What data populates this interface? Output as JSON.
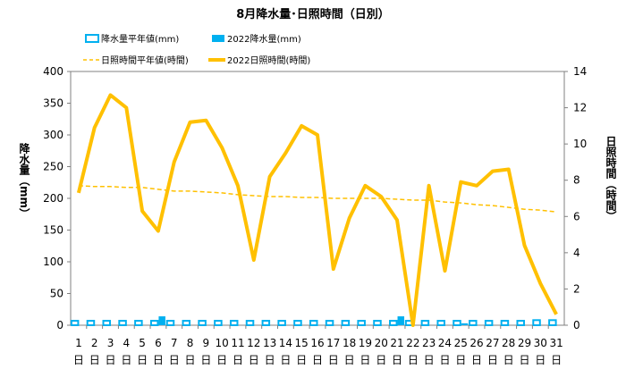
{
  "chart_data": {
    "type": "bar+line",
    "title": "8月降水量･日照時間（日別）",
    "categories": [
      "1",
      "2",
      "3",
      "4",
      "5",
      "6",
      "7",
      "8",
      "9",
      "10",
      "11",
      "12",
      "13",
      "14",
      "15",
      "16",
      "17",
      "18",
      "19",
      "20",
      "21",
      "22",
      "23",
      "24",
      "25",
      "26",
      "27",
      "28",
      "29",
      "30",
      "31"
    ],
    "category_suffix": "日",
    "y_left": {
      "label": "降水量（mm）",
      "min": 0,
      "max": 400,
      "ticks": [
        0,
        50,
        100,
        150,
        200,
        250,
        300,
        350,
        400
      ]
    },
    "y_right": {
      "label": "日照時間（時間）",
      "min": 0,
      "max": 14,
      "ticks": [
        0,
        2,
        4,
        6,
        8,
        10,
        12,
        14
      ]
    },
    "legend": [
      {
        "key": "rain_normal",
        "label": "降水量平年値(mm)"
      },
      {
        "key": "rain_2022",
        "label": "2022降水量(mm)"
      },
      {
        "key": "sun_normal",
        "label": "日照時間平年値(時間)"
      },
      {
        "key": "sun_2022",
        "label": "2022日照時間(時間)"
      }
    ],
    "series": [
      {
        "key": "rain_normal",
        "name": "降水量平年値(mm)",
        "axis": "left",
        "kind": "bar",
        "color": "#00b0f0",
        "values": [
          7,
          7,
          7,
          7,
          7,
          7,
          7,
          7,
          7,
          7,
          7,
          7,
          7,
          7,
          7,
          7,
          7,
          7,
          7,
          7,
          7,
          7,
          7,
          7,
          7,
          7,
          7,
          7,
          7,
          8,
          8
        ]
      },
      {
        "key": "rain_2022",
        "name": "2022降水量(mm)",
        "axis": "left",
        "kind": "bar",
        "color": "#00b0f0",
        "values": [
          0,
          0,
          0,
          0,
          0,
          14,
          0,
          0,
          0,
          0,
          0,
          0,
          0,
          0,
          0,
          0,
          0,
          0,
          0,
          0,
          14,
          0,
          0,
          0,
          3,
          0,
          0,
          0,
          0,
          0,
          0
        ]
      },
      {
        "key": "sun_normal",
        "name": "日照時間平年値(時間)",
        "axis": "right",
        "kind": "line",
        "dashed": true,
        "color": "#ffc000",
        "values": [
          7.7,
          7.65,
          7.65,
          7.6,
          7.6,
          7.5,
          7.4,
          7.4,
          7.35,
          7.3,
          7.2,
          7.15,
          7.1,
          7.1,
          7.05,
          7.05,
          7.0,
          7.0,
          7.0,
          7.0,
          6.95,
          6.9,
          6.9,
          6.8,
          6.75,
          6.65,
          6.6,
          6.5,
          6.4,
          6.35,
          6.25
        ]
      },
      {
        "key": "sun_2022",
        "name": "2022日照時間(時間)",
        "axis": "right",
        "kind": "line",
        "color": "#ffc000",
        "values": [
          7.3,
          10.9,
          12.7,
          12.0,
          6.3,
          5.2,
          9.0,
          11.2,
          11.3,
          9.8,
          7.7,
          3.6,
          8.2,
          9.5,
          11.0,
          10.5,
          3.1,
          5.9,
          7.7,
          7.1,
          5.8,
          0.0,
          7.7,
          3.0,
          7.9,
          7.7,
          8.5,
          8.6,
          4.4,
          2.3,
          0.6
        ]
      }
    ]
  }
}
